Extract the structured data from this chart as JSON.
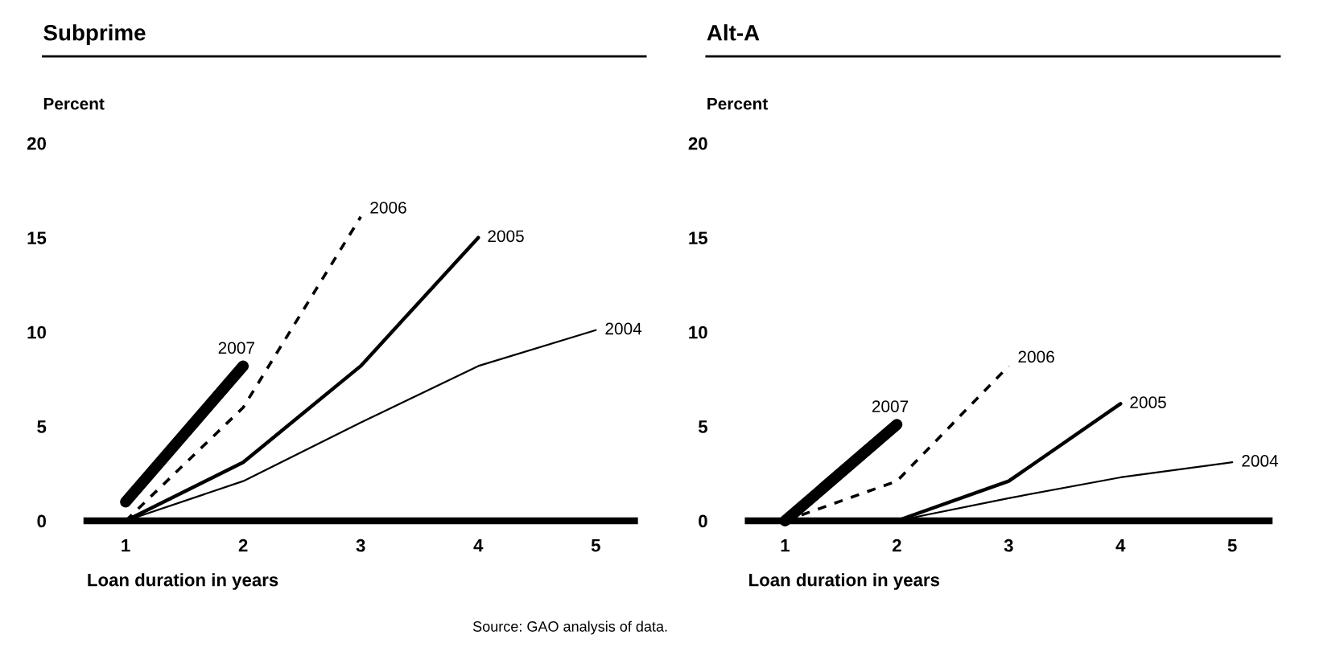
{
  "chart_data": [
    {
      "type": "line",
      "title": "Subprime",
      "ylabel": "Percent",
      "xlabel": "Loan duration in years",
      "xlim": [
        0.67,
        5.33
      ],
      "xticks": [
        1,
        2,
        3,
        4,
        5
      ],
      "ylim": [
        0,
        20
      ],
      "yticks": [
        0,
        5,
        10,
        15,
        20
      ],
      "grid": false,
      "legend": false,
      "marker": "none",
      "series": [
        {
          "name": "2007",
          "color": "#000000",
          "x": [
            1,
            2
          ],
          "values": [
            1.0,
            8.2
          ]
        },
        {
          "name": "2006",
          "color": "#000000",
          "line_style": "dashed",
          "x": [
            1,
            2,
            3
          ],
          "values": [
            0,
            6.0,
            16.1
          ]
        },
        {
          "name": "2005",
          "color": "#000000",
          "x": [
            1,
            2,
            3,
            4
          ],
          "values": [
            0,
            3.1,
            8.2,
            15.0
          ]
        },
        {
          "name": "2004",
          "color": "#000000",
          "x": [
            1,
            2,
            3,
            4,
            5
          ],
          "values": [
            0,
            2.1,
            5.2,
            8.2,
            10.1
          ]
        }
      ],
      "annotations": [
        "Source: GAO analysis of data."
      ]
    },
    {
      "type": "line",
      "title": "Alt-A",
      "ylabel": "Percent",
      "xlabel": "Loan duration in years",
      "xlim": [
        0.67,
        5.33
      ],
      "xticks": [
        1,
        2,
        3,
        4,
        5
      ],
      "ylim": [
        0,
        20
      ],
      "yticks": [
        0,
        5,
        10,
        15,
        20
      ],
      "grid": false,
      "legend": false,
      "marker": "none",
      "series": [
        {
          "name": "2007",
          "color": "#000000",
          "x": [
            1,
            2
          ],
          "values": [
            0,
            5.1
          ]
        },
        {
          "name": "2006",
          "color": "#000000",
          "line_style": "dashed",
          "x": [
            1,
            2,
            3
          ],
          "values": [
            0,
            2.1,
            8.2
          ]
        },
        {
          "name": "2005",
          "color": "#000000",
          "x": [
            1,
            2,
            3,
            4
          ],
          "values": [
            0,
            0,
            2.1,
            6.2
          ]
        },
        {
          "name": "2004",
          "color": "#000000",
          "x": [
            1,
            2,
            3,
            4,
            5
          ],
          "values": [
            0,
            0,
            1.2,
            2.3,
            3.1
          ]
        }
      ]
    }
  ]
}
